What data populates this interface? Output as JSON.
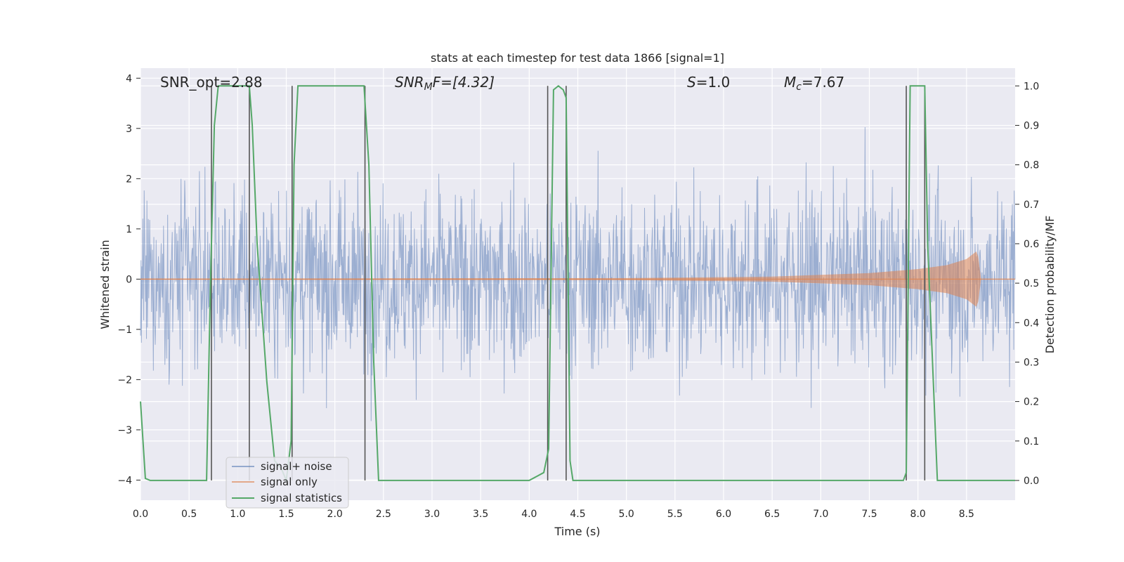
{
  "chart_data": {
    "type": "line",
    "title": "stats at each timestep for test data 1866 [signal=1]",
    "xlabel": "Time (s)",
    "ylabel_left": "Whitened strain",
    "ylabel_right": "Detection probability/MF",
    "xlim": [
      0,
      9.0
    ],
    "ylim_left": [
      -4.4,
      4.2
    ],
    "ylim_right": [
      -0.05,
      1.045
    ],
    "x_ticks": [
      "0.0",
      "0.5",
      "1.0",
      "1.5",
      "2.0",
      "2.5",
      "3.0",
      "3.5",
      "4.0",
      "4.5",
      "5.0",
      "5.5",
      "6.0",
      "6.5",
      "7.0",
      "7.5",
      "8.0",
      "8.5"
    ],
    "y_ticks_left": [
      "4",
      "3",
      "2",
      "1",
      "0",
      "−1",
      "−2",
      "−3",
      "−4"
    ],
    "y_ticks_right": [
      "1.0",
      "0.9",
      "0.8",
      "0.7",
      "0.6",
      "0.5",
      "0.4",
      "0.3",
      "0.2",
      "0.1",
      "0.0"
    ],
    "grid": true,
    "annotations": {
      "snr_opt": "SNR_opt=2.88",
      "snr_mf_base": "SNR",
      "snr_mf_sub": "M",
      "snr_mf_rest": "F=[4.32]",
      "s_base": "S",
      "s_rest": "=1.0",
      "mc_base": "M",
      "mc_sub": "c",
      "mc_rest": "=7.67"
    },
    "legend": {
      "placement": "lower-left",
      "entries": [
        "signal+ noise",
        "signal only",
        "signal statistics"
      ]
    },
    "series": [
      {
        "name": "signal statistics",
        "axis": "right",
        "color": "#55a868",
        "x": [
          0.0,
          0.05,
          0.1,
          0.3,
          0.5,
          0.68,
          0.72,
          0.76,
          0.8,
          0.85,
          1.0,
          1.12,
          1.15,
          1.2,
          1.3,
          1.38,
          1.45,
          1.5,
          1.55,
          1.58,
          1.62,
          1.7,
          2.0,
          2.3,
          2.35,
          2.4,
          2.45,
          2.5,
          3.0,
          4.0,
          4.15,
          4.2,
          4.25,
          4.3,
          4.35,
          4.38,
          4.42,
          4.45,
          4.5,
          6.0,
          7.5,
          7.85,
          7.88,
          7.92,
          8.0,
          8.07,
          8.1,
          8.15,
          8.2,
          8.3,
          9.0
        ],
        "y": [
          0.2,
          0.005,
          0.0,
          0.0,
          0.0,
          0.0,
          0.5,
          0.9,
          1.0,
          1.0,
          1.0,
          1.0,
          0.9,
          0.6,
          0.25,
          0.05,
          0.03,
          0.0,
          0.1,
          0.8,
          1.0,
          1.0,
          1.0,
          1.0,
          0.8,
          0.3,
          0.0,
          0.0,
          0.0,
          0.0,
          0.02,
          0.08,
          0.99,
          1.0,
          0.99,
          0.97,
          0.05,
          0.0,
          0.0,
          0.0,
          0.0,
          0.0,
          0.02,
          1.0,
          1.0,
          1.0,
          0.6,
          0.3,
          0.0,
          0.0,
          0.0
        ]
      },
      {
        "name": "signal only",
        "axis": "left",
        "color": "#dd8452",
        "x": [
          0.0,
          5.0,
          6.5,
          7.5,
          8.0,
          8.3,
          8.5,
          8.6,
          8.62,
          8.65
        ],
        "amplitude": [
          0.01,
          0.02,
          0.05,
          0.12,
          0.2,
          0.28,
          0.4,
          0.55,
          0.45,
          0.0
        ]
      },
      {
        "name": "signal+ noise",
        "axis": "left",
        "color": "#4c72b0",
        "envelope": "dense noise between about -3.8 and +3.8",
        "x_range": [
          0.0,
          9.0
        ]
      }
    ],
    "vertical_markers_x": [
      0.73,
      1.12,
      1.56,
      2.31,
      4.19,
      4.38,
      7.88,
      8.07
    ],
    "colors": {
      "background": "#eaeaf2",
      "grid": "#ffffff",
      "noise": "#4c72b0",
      "signal": "#dd8452",
      "statistic": "#55a868",
      "marker": "#555555"
    }
  }
}
